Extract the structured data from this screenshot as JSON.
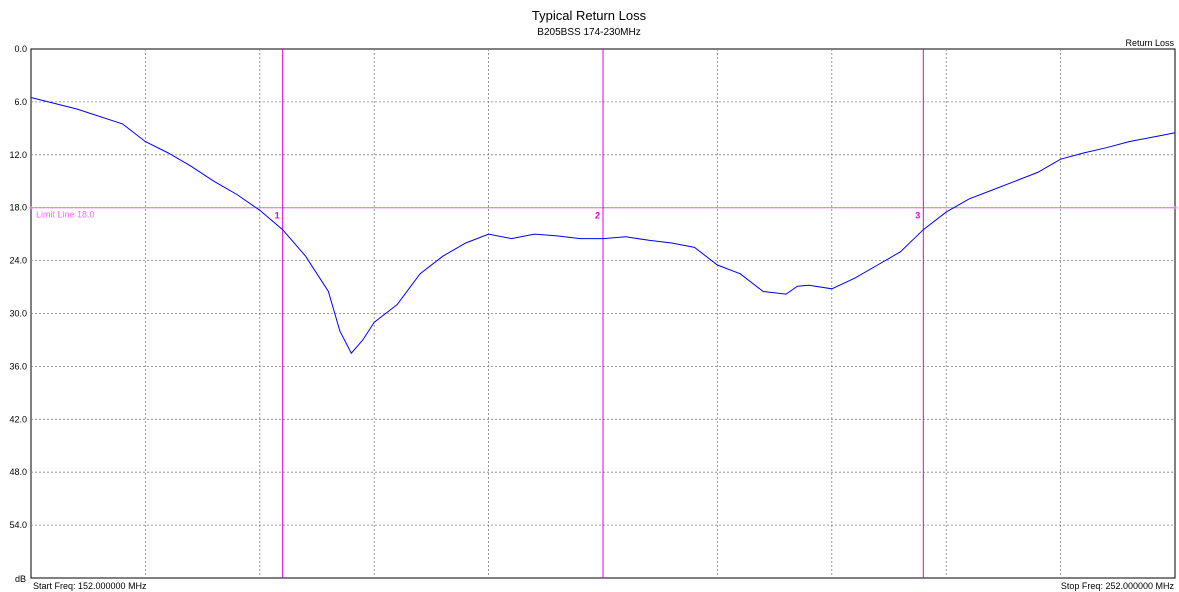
{
  "chart_data": {
    "type": "line",
    "title": "Typical Return Loss",
    "subtitle": "B205BSS 174-230MHz",
    "series_label": "Return Loss",
    "ylabel": "dB",
    "start_freq_label": "Start Freq: 152.000000 MHz",
    "stop_freq_label": "Stop Freq: 252.000000 MHz",
    "xlim": [
      152,
      252
    ],
    "ylim": [
      0,
      60
    ],
    "y_inverted": true,
    "y_ticks": [
      "0.0",
      "6.0",
      "12.0",
      "18.0",
      "24.0",
      "30.0",
      "36.0",
      "42.0",
      "48.0",
      "54.0"
    ],
    "x_grid_count": 10,
    "grid": true,
    "limit_line": {
      "value": 18.0,
      "label": "Limit Line 18.0",
      "color": "#ff66ff"
    },
    "markers": [
      {
        "label": "1",
        "x": 174
      },
      {
        "label": "2",
        "x": 202
      },
      {
        "label": "3",
        "x": 230
      }
    ],
    "colors": {
      "trace": "#0000ff",
      "marker": "#e000e0",
      "grid": "#808080"
    },
    "series": [
      {
        "values_x": [
          152,
          156,
          160,
          162,
          164,
          166,
          168,
          170,
          172,
          174,
          176,
          178,
          179,
          180,
          181,
          182,
          183,
          184,
          186,
          188,
          190,
          192,
          194,
          196,
          198,
          200,
          202,
          204,
          206,
          208,
          210,
          212,
          214,
          216,
          218,
          219,
          220,
          222,
          224,
          226,
          228,
          230,
          232,
          234,
          236,
          238,
          240,
          242,
          244,
          246,
          248,
          250,
          252
        ],
        "values": [
          5.5,
          6.8,
          8.5,
          10.5,
          11.8,
          13.3,
          15,
          16.5,
          18.3,
          20.5,
          23.5,
          27.5,
          32,
          34.5,
          33,
          31,
          30,
          29,
          25.5,
          23.5,
          22,
          21,
          21.5,
          21,
          21.2,
          21.5,
          21.5,
          21.3,
          21.7,
          22,
          22.5,
          24.5,
          25.5,
          27.5,
          27.8,
          26.9,
          26.8,
          27.2,
          26,
          24.5,
          23,
          20.5,
          18.5,
          17,
          16,
          15,
          14,
          12.5,
          11.8,
          11.2,
          10.5,
          10,
          9.5
        ]
      }
    ]
  }
}
